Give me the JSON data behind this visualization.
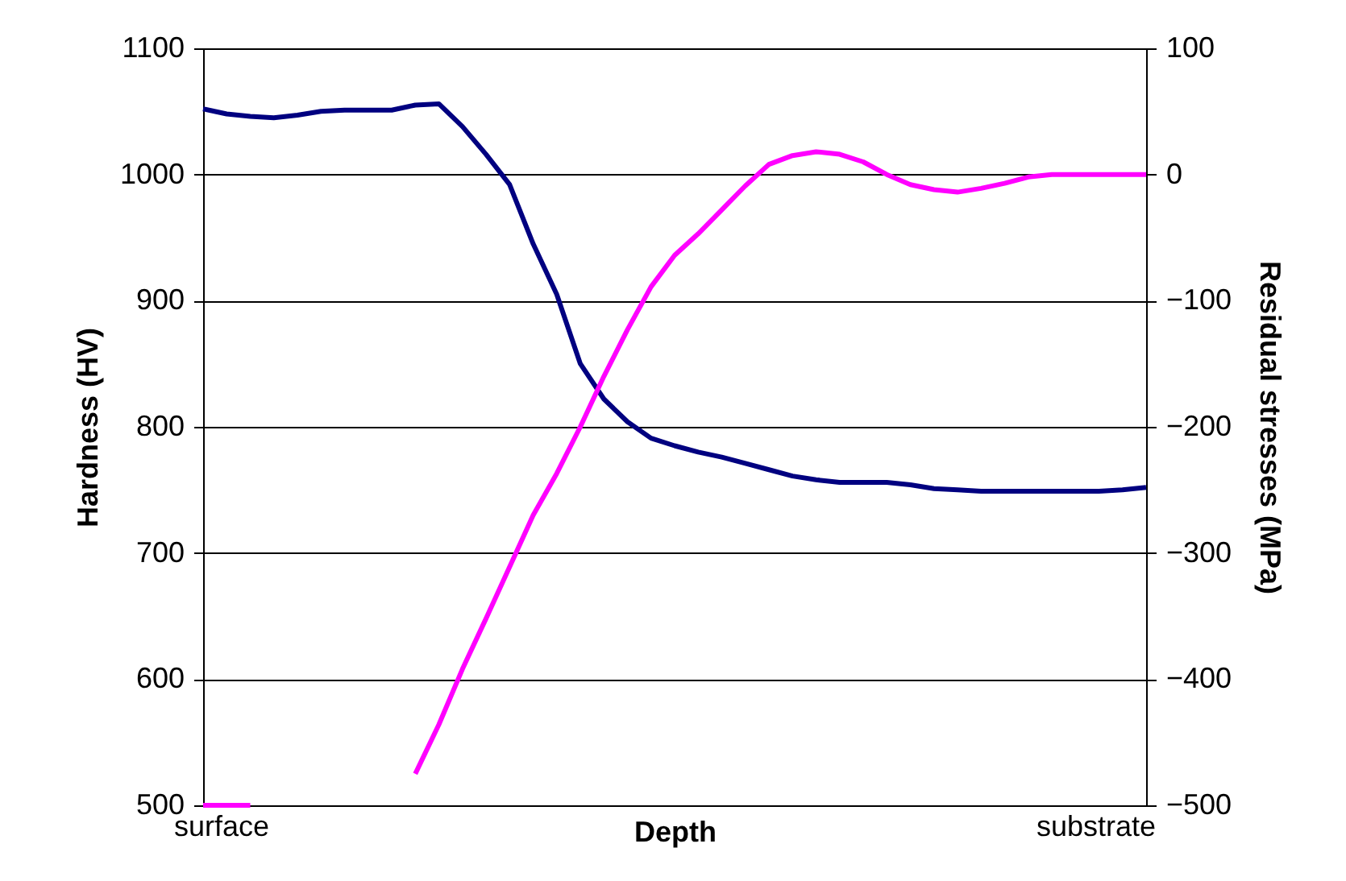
{
  "chart_data": {
    "type": "line",
    "xlabel": "Depth",
    "ylabel": "Hardness (HV)",
    "y2label": "Residual stresses (MPa)",
    "annotations": [
      "surface",
      "substrate"
    ],
    "categories": [
      null,
      null,
      null,
      null,
      null,
      null,
      null,
      null,
      null,
      null,
      null,
      null,
      null,
      null,
      null,
      null,
      null,
      null,
      null,
      null,
      null,
      null,
      null,
      null,
      null,
      null,
      null,
      null,
      null,
      null,
      null,
      null,
      null,
      null,
      null,
      null,
      null,
      null,
      null,
      null,
      null
    ],
    "ylim": [
      500,
      1100
    ],
    "yticks": [
      500,
      600,
      700,
      800,
      900,
      {
        "value": 1000,
        "label": "1000"
      },
      {
        "value": 1100,
        "label": "1100"
      }
    ],
    "y2lim": [
      -500,
      100
    ],
    "y2ticks": [
      -500,
      -400,
      -300,
      -200,
      -100,
      0,
      100
    ],
    "grid": "y",
    "marker": "none",
    "line_style": "solid",
    "series": [
      {
        "color": "#000080",
        "values": [
          1052,
          1048,
          1046,
          1045,
          1047,
          1050,
          1051,
          1051,
          1051,
          1055,
          1056,
          1038,
          1016,
          992,
          945,
          905,
          850,
          822,
          804,
          791,
          785,
          780,
          776,
          771,
          766,
          761,
          758,
          756,
          756,
          756,
          754,
          751,
          750,
          749,
          749,
          749,
          749,
          749,
          749,
          750,
          752
        ]
      },
      {
        "color": "#ff00ff",
        "axis": "y2",
        "values": [
          -500,
          -500,
          -500,
          null,
          null,
          null,
          null,
          null,
          null,
          -475,
          -436,
          -392,
          -352,
          -311,
          -270,
          -237,
          -200,
          -160,
          -123,
          -89,
          -64,
          -47,
          -28,
          -9,
          8,
          15,
          18,
          16,
          10,
          0,
          -8,
          -12,
          -14,
          -11,
          -7,
          -2,
          0,
          0,
          0,
          0,
          0
        ]
      }
    ]
  }
}
